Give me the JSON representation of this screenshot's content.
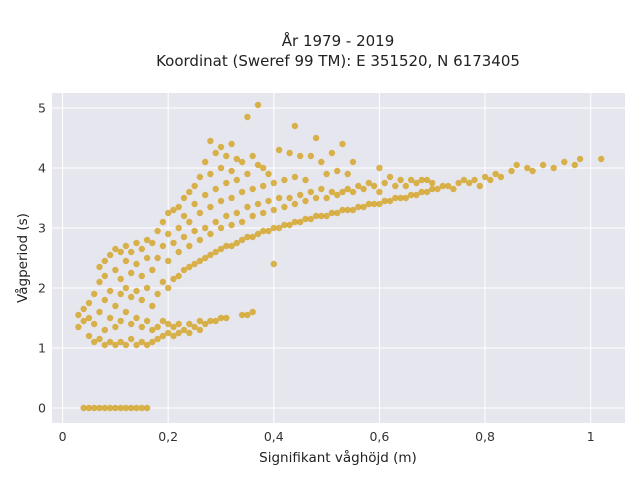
{
  "chart_data": {
    "type": "scatter",
    "title_line1": "År 1979 - 2019",
    "title_line2": "Koordinat (Sweref 99 TM): E 351520, N 6173405",
    "xlabel": "Signifikant våghöjd (m)",
    "ylabel": "Vågperiod (s)",
    "xlim": [
      -0.02,
      1.065
    ],
    "ylim": [
      -0.25,
      5.25
    ],
    "x_ticks": [
      0,
      0.2,
      0.4,
      0.6,
      0.8,
      1.0
    ],
    "x_tick_labels": [
      "0",
      "0,2",
      "0,4",
      "0,6",
      "0,8",
      "1"
    ],
    "y_ticks": [
      0,
      1,
      2,
      3,
      4,
      5
    ],
    "y_tick_labels": [
      "0",
      "1",
      "2",
      "3",
      "4",
      "5"
    ],
    "grid": true,
    "colors": {
      "marker": "#D4A21F",
      "plot_bg": "#E6E6EF",
      "grid": "#FFFFFF",
      "background": "#FFFFFF"
    },
    "series": [
      {
        "marker": "circle",
        "points": [
          [
            0.04,
            0.0
          ],
          [
            0.05,
            0.0
          ],
          [
            0.06,
            0.0
          ],
          [
            0.07,
            0.0
          ],
          [
            0.08,
            0.0
          ],
          [
            0.09,
            0.0
          ],
          [
            0.1,
            0.0
          ],
          [
            0.11,
            0.0
          ],
          [
            0.12,
            0.0
          ],
          [
            0.13,
            0.0
          ],
          [
            0.14,
            0.0
          ],
          [
            0.15,
            0.0
          ],
          [
            0.16,
            0.0
          ],
          [
            0.03,
            1.35
          ],
          [
            0.03,
            1.55
          ],
          [
            0.04,
            1.45
          ],
          [
            0.04,
            1.65
          ],
          [
            0.05,
            1.2
          ],
          [
            0.05,
            1.5
          ],
          [
            0.05,
            1.75
          ],
          [
            0.06,
            1.1
          ],
          [
            0.06,
            1.4
          ],
          [
            0.06,
            1.9
          ],
          [
            0.07,
            1.15
          ],
          [
            0.07,
            1.6
          ],
          [
            0.07,
            2.1
          ],
          [
            0.07,
            2.35
          ],
          [
            0.08,
            1.05
          ],
          [
            0.08,
            1.3
          ],
          [
            0.08,
            1.8
          ],
          [
            0.08,
            2.2
          ],
          [
            0.08,
            2.45
          ],
          [
            0.09,
            1.1
          ],
          [
            0.09,
            1.5
          ],
          [
            0.09,
            1.95
          ],
          [
            0.09,
            2.55
          ],
          [
            0.1,
            1.05
          ],
          [
            0.1,
            1.35
          ],
          [
            0.1,
            1.7
          ],
          [
            0.1,
            2.3
          ],
          [
            0.1,
            2.65
          ],
          [
            0.11,
            1.1
          ],
          [
            0.11,
            1.45
          ],
          [
            0.11,
            1.9
          ],
          [
            0.11,
            2.15
          ],
          [
            0.11,
            2.6
          ],
          [
            0.12,
            1.05
          ],
          [
            0.12,
            1.6
          ],
          [
            0.12,
            2.0
          ],
          [
            0.12,
            2.45
          ],
          [
            0.12,
            2.7
          ],
          [
            0.13,
            1.15
          ],
          [
            0.13,
            1.4
          ],
          [
            0.13,
            1.85
          ],
          [
            0.13,
            2.25
          ],
          [
            0.13,
            2.6
          ],
          [
            0.14,
            1.05
          ],
          [
            0.14,
            1.5
          ],
          [
            0.14,
            1.95
          ],
          [
            0.14,
            2.4
          ],
          [
            0.14,
            2.75
          ],
          [
            0.15,
            1.1
          ],
          [
            0.15,
            1.35
          ],
          [
            0.15,
            1.8
          ],
          [
            0.15,
            2.2
          ],
          [
            0.15,
            2.65
          ],
          [
            0.16,
            1.05
          ],
          [
            0.16,
            1.45
          ],
          [
            0.16,
            2.0
          ],
          [
            0.16,
            2.5
          ],
          [
            0.16,
            2.8
          ],
          [
            0.17,
            1.1
          ],
          [
            0.17,
            1.3
          ],
          [
            0.17,
            1.7
          ],
          [
            0.17,
            2.3
          ],
          [
            0.17,
            2.75
          ],
          [
            0.18,
            1.15
          ],
          [
            0.18,
            1.35
          ],
          [
            0.18,
            1.9
          ],
          [
            0.18,
            2.5
          ],
          [
            0.18,
            2.95
          ],
          [
            0.19,
            1.2
          ],
          [
            0.19,
            1.45
          ],
          [
            0.19,
            2.1
          ],
          [
            0.19,
            2.7
          ],
          [
            0.19,
            3.1
          ],
          [
            0.2,
            1.25
          ],
          [
            0.2,
            1.4
          ],
          [
            0.2,
            2.0
          ],
          [
            0.2,
            2.45
          ],
          [
            0.2,
            2.9
          ],
          [
            0.2,
            3.25
          ],
          [
            0.21,
            1.2
          ],
          [
            0.21,
            1.35
          ],
          [
            0.21,
            2.15
          ],
          [
            0.21,
            2.75
          ],
          [
            0.21,
            3.3
          ],
          [
            0.22,
            1.25
          ],
          [
            0.22,
            1.4
          ],
          [
            0.22,
            2.2
          ],
          [
            0.22,
            2.6
          ],
          [
            0.22,
            3.0
          ],
          [
            0.22,
            3.35
          ],
          [
            0.23,
            1.3
          ],
          [
            0.23,
            2.3
          ],
          [
            0.23,
            2.85
          ],
          [
            0.23,
            3.2
          ],
          [
            0.23,
            3.5
          ],
          [
            0.24,
            1.25
          ],
          [
            0.24,
            1.4
          ],
          [
            0.24,
            2.35
          ],
          [
            0.24,
            2.7
          ],
          [
            0.24,
            3.1
          ],
          [
            0.24,
            3.6
          ],
          [
            0.25,
            1.35
          ],
          [
            0.25,
            2.4
          ],
          [
            0.25,
            2.95
          ],
          [
            0.25,
            3.4
          ],
          [
            0.25,
            3.7
          ],
          [
            0.26,
            1.3
          ],
          [
            0.26,
            1.45
          ],
          [
            0.26,
            2.45
          ],
          [
            0.26,
            2.8
          ],
          [
            0.26,
            3.25
          ],
          [
            0.26,
            3.85
          ],
          [
            0.27,
            1.4
          ],
          [
            0.27,
            2.5
          ],
          [
            0.27,
            3.0
          ],
          [
            0.27,
            3.55
          ],
          [
            0.27,
            4.1
          ],
          [
            0.28,
            1.45
          ],
          [
            0.28,
            2.55
          ],
          [
            0.28,
            2.9
          ],
          [
            0.28,
            3.35
          ],
          [
            0.28,
            3.9
          ],
          [
            0.28,
            4.45
          ],
          [
            0.29,
            1.45
          ],
          [
            0.29,
            2.6
          ],
          [
            0.29,
            3.1
          ],
          [
            0.29,
            3.65
          ],
          [
            0.29,
            4.25
          ],
          [
            0.3,
            1.5
          ],
          [
            0.3,
            2.65
          ],
          [
            0.3,
            3.0
          ],
          [
            0.3,
            3.45
          ],
          [
            0.3,
            4.0
          ],
          [
            0.3,
            4.35
          ],
          [
            0.31,
            1.5
          ],
          [
            0.31,
            2.7
          ],
          [
            0.31,
            3.2
          ],
          [
            0.31,
            3.75
          ],
          [
            0.31,
            4.2
          ],
          [
            0.32,
            2.7
          ],
          [
            0.32,
            3.05
          ],
          [
            0.32,
            3.5
          ],
          [
            0.32,
            3.95
          ],
          [
            0.32,
            4.4
          ],
          [
            0.33,
            2.75
          ],
          [
            0.33,
            3.25
          ],
          [
            0.33,
            3.8
          ],
          [
            0.33,
            4.15
          ],
          [
            0.34,
            1.55
          ],
          [
            0.34,
            2.8
          ],
          [
            0.34,
            3.1
          ],
          [
            0.34,
            3.6
          ],
          [
            0.34,
            4.1
          ],
          [
            0.35,
            1.55
          ],
          [
            0.35,
            2.85
          ],
          [
            0.35,
            3.35
          ],
          [
            0.35,
            3.9
          ],
          [
            0.35,
            4.85
          ],
          [
            0.36,
            1.6
          ],
          [
            0.36,
            2.85
          ],
          [
            0.36,
            3.2
          ],
          [
            0.36,
            3.65
          ],
          [
            0.36,
            4.2
          ],
          [
            0.37,
            2.9
          ],
          [
            0.37,
            3.4
          ],
          [
            0.37,
            4.05
          ],
          [
            0.37,
            5.05
          ],
          [
            0.38,
            2.95
          ],
          [
            0.38,
            3.25
          ],
          [
            0.38,
            3.7
          ],
          [
            0.38,
            4.0
          ],
          [
            0.39,
            2.95
          ],
          [
            0.39,
            3.45
          ],
          [
            0.39,
            3.9
          ],
          [
            0.4,
            2.4
          ],
          [
            0.4,
            3.0
          ],
          [
            0.4,
            3.3
          ],
          [
            0.4,
            3.75
          ],
          [
            0.41,
            3.0
          ],
          [
            0.41,
            3.5
          ],
          [
            0.41,
            4.3
          ],
          [
            0.42,
            3.05
          ],
          [
            0.42,
            3.35
          ],
          [
            0.42,
            3.8
          ],
          [
            0.43,
            3.05
          ],
          [
            0.43,
            3.5
          ],
          [
            0.43,
            4.25
          ],
          [
            0.44,
            3.1
          ],
          [
            0.44,
            3.4
          ],
          [
            0.44,
            3.85
          ],
          [
            0.44,
            4.7
          ],
          [
            0.45,
            3.1
          ],
          [
            0.45,
            3.55
          ],
          [
            0.45,
            4.2
          ],
          [
            0.46,
            3.15
          ],
          [
            0.46,
            3.45
          ],
          [
            0.46,
            3.8
          ],
          [
            0.47,
            3.15
          ],
          [
            0.47,
            3.6
          ],
          [
            0.47,
            4.2
          ],
          [
            0.48,
            3.2
          ],
          [
            0.48,
            3.5
          ],
          [
            0.48,
            4.5
          ],
          [
            0.49,
            3.2
          ],
          [
            0.49,
            3.65
          ],
          [
            0.49,
            4.1
          ],
          [
            0.5,
            3.2
          ],
          [
            0.5,
            3.5
          ],
          [
            0.5,
            3.9
          ],
          [
            0.51,
            3.25
          ],
          [
            0.51,
            3.6
          ],
          [
            0.51,
            4.25
          ],
          [
            0.52,
            3.25
          ],
          [
            0.52,
            3.55
          ],
          [
            0.52,
            3.95
          ],
          [
            0.53,
            3.3
          ],
          [
            0.53,
            3.6
          ],
          [
            0.53,
            4.4
          ],
          [
            0.54,
            3.3
          ],
          [
            0.54,
            3.65
          ],
          [
            0.54,
            3.9
          ],
          [
            0.55,
            3.3
          ],
          [
            0.55,
            3.6
          ],
          [
            0.55,
            4.1
          ],
          [
            0.56,
            3.35
          ],
          [
            0.56,
            3.7
          ],
          [
            0.57,
            3.35
          ],
          [
            0.57,
            3.65
          ],
          [
            0.58,
            3.4
          ],
          [
            0.58,
            3.75
          ],
          [
            0.59,
            3.4
          ],
          [
            0.59,
            3.7
          ],
          [
            0.6,
            3.4
          ],
          [
            0.6,
            3.6
          ],
          [
            0.6,
            4.0
          ],
          [
            0.61,
            3.45
          ],
          [
            0.61,
            3.75
          ],
          [
            0.62,
            3.45
          ],
          [
            0.62,
            3.85
          ],
          [
            0.63,
            3.5
          ],
          [
            0.63,
            3.7
          ],
          [
            0.64,
            3.5
          ],
          [
            0.64,
            3.8
          ],
          [
            0.65,
            3.5
          ],
          [
            0.65,
            3.7
          ],
          [
            0.66,
            3.55
          ],
          [
            0.66,
            3.8
          ],
          [
            0.67,
            3.55
          ],
          [
            0.67,
            3.75
          ],
          [
            0.68,
            3.6
          ],
          [
            0.68,
            3.8
          ],
          [
            0.69,
            3.6
          ],
          [
            0.69,
            3.8
          ],
          [
            0.7,
            3.65
          ],
          [
            0.7,
            3.75
          ],
          [
            0.71,
            3.65
          ],
          [
            0.72,
            3.7
          ],
          [
            0.73,
            3.7
          ],
          [
            0.74,
            3.65
          ],
          [
            0.75,
            3.75
          ],
          [
            0.76,
            3.8
          ],
          [
            0.77,
            3.75
          ],
          [
            0.78,
            3.8
          ],
          [
            0.79,
            3.7
          ],
          [
            0.8,
            3.85
          ],
          [
            0.81,
            3.8
          ],
          [
            0.82,
            3.9
          ],
          [
            0.83,
            3.85
          ],
          [
            0.85,
            3.95
          ],
          [
            0.86,
            4.05
          ],
          [
            0.88,
            4.0
          ],
          [
            0.89,
            3.95
          ],
          [
            0.91,
            4.05
          ],
          [
            0.93,
            4.0
          ],
          [
            0.95,
            4.1
          ],
          [
            0.97,
            4.05
          ],
          [
            0.98,
            4.15
          ],
          [
            1.02,
            4.15
          ]
        ]
      }
    ]
  }
}
